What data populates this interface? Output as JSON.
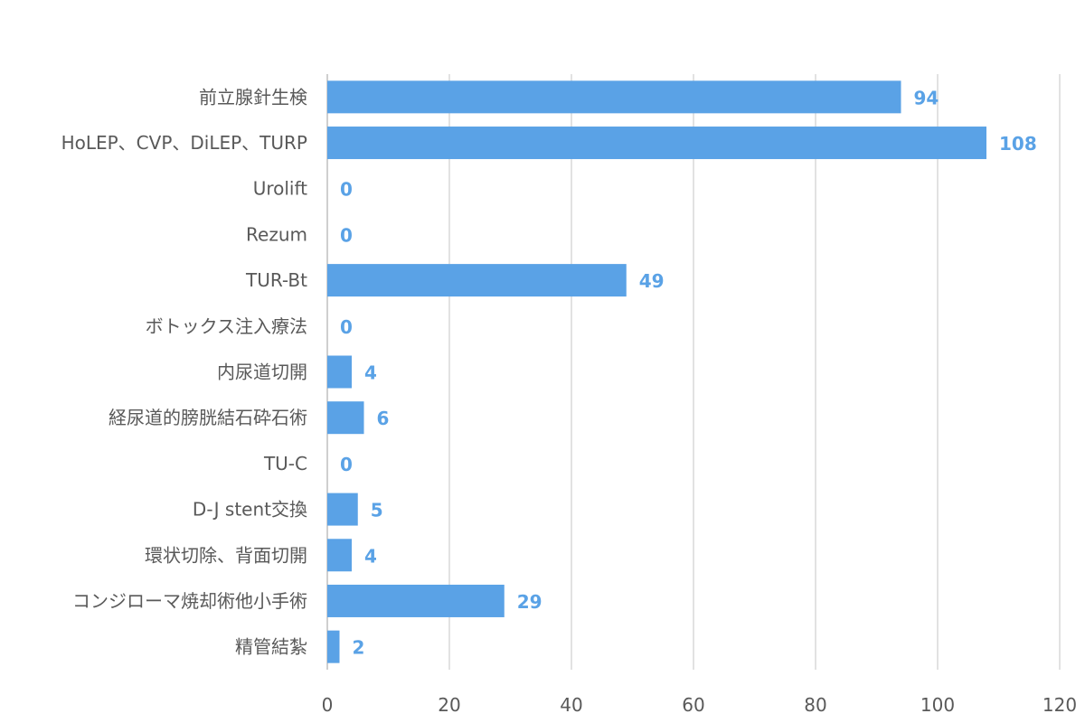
{
  "chart_data": {
    "type": "bar",
    "orientation": "horizontal",
    "categories": [
      "前立腺針生検",
      "HoLEP、CVP、DiLEP、TURP",
      "Urolift",
      "Rezum",
      "TUR-Bt",
      "ボトックス注入療法",
      "内尿道切開",
      "経尿道的膀胱結石砕石術",
      "TU-C",
      "D-J stent交換",
      "環状切除、背面切開",
      "コンジローマ焼却術他小手術",
      "精管結紮"
    ],
    "values": [
      94,
      108,
      0,
      0,
      49,
      0,
      4,
      6,
      0,
      5,
      4,
      29,
      2
    ],
    "xlim": [
      0,
      120
    ],
    "xticks": [
      0,
      20,
      40,
      60,
      80,
      100,
      120
    ],
    "grid": "vertical",
    "data_labels": true,
    "legend": "none",
    "bar_color": "#5aa2e6",
    "label_color": "#5aa2e6"
  }
}
